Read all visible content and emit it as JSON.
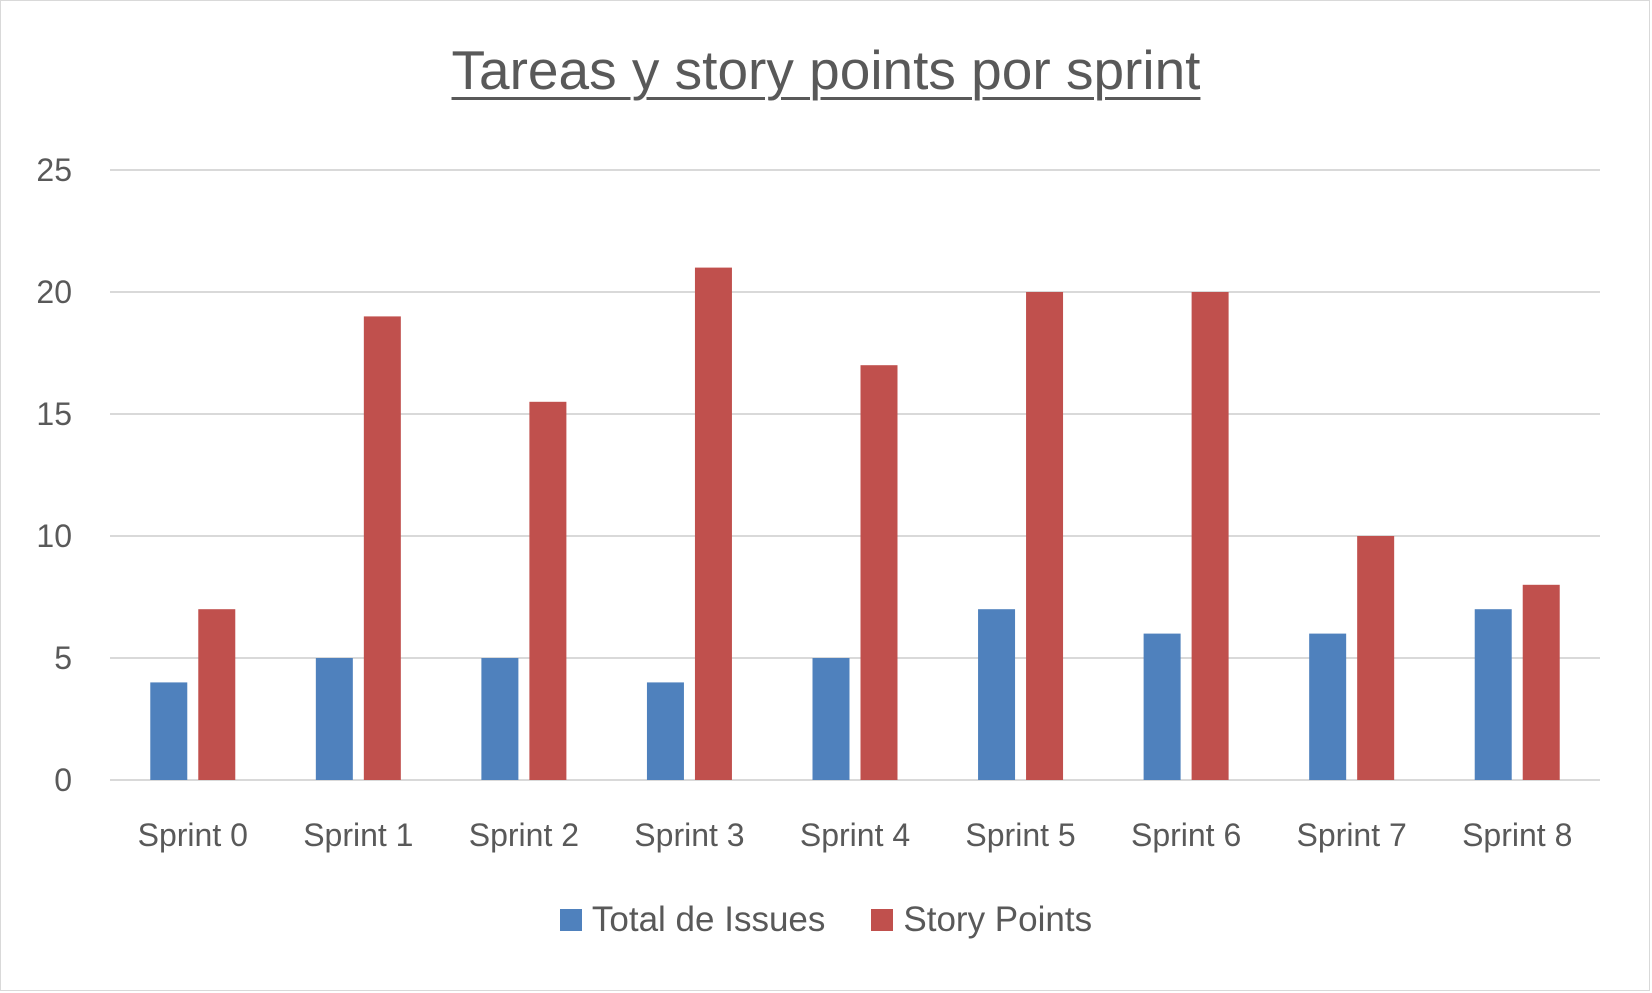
{
  "chart_data": {
    "type": "bar",
    "title": "Tareas y story points por sprint",
    "categories": [
      "Sprint 0",
      "Sprint 1",
      "Sprint 2",
      "Sprint 3",
      "Sprint 4",
      "Sprint 5",
      "Sprint 6",
      "Sprint 7",
      "Sprint 8"
    ],
    "series": [
      {
        "name": "Total de Issues",
        "color": "#4f81bd",
        "values": [
          4,
          5,
          5,
          4,
          5,
          7,
          6,
          6,
          7
        ]
      },
      {
        "name": "Story Points",
        "color": "#c0504d",
        "values": [
          7,
          19,
          15.5,
          21,
          17,
          20,
          20,
          10,
          8
        ]
      }
    ],
    "ylim": [
      0,
      25
    ],
    "yticks": [
      0,
      5,
      10,
      15,
      20,
      25
    ],
    "grid": true,
    "legend": "bottom"
  }
}
